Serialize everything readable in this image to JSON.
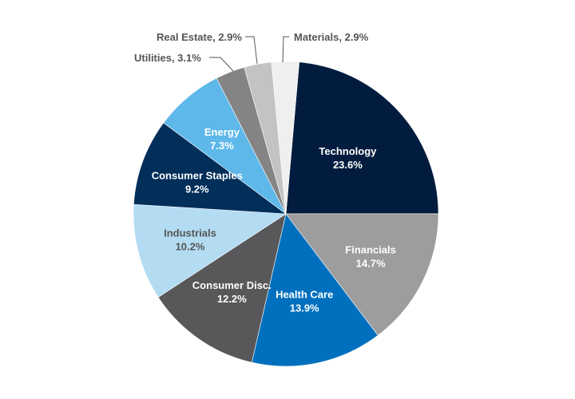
{
  "chart_data": {
    "type": "pie",
    "title": "",
    "start": "12 o'clock (slightly clockwise)",
    "direction": "clockwise",
    "legend": "none",
    "slices": [
      {
        "name": "Technology",
        "value": 23.6,
        "label": "Technology",
        "value_label": "23.6%",
        "color": "#011c3e",
        "text_color": "#ffffff",
        "label_style": "inside"
      },
      {
        "name": "Financials",
        "value": 14.7,
        "label": "Financials",
        "value_label": "14.7%",
        "color": "#9d9d9d",
        "text_color": "#ffffff",
        "label_style": "inside"
      },
      {
        "name": "Health Care",
        "value": 13.9,
        "label": "Health Care",
        "value_label": "13.9%",
        "color": "#0070be",
        "text_color": "#ffffff",
        "label_style": "inside"
      },
      {
        "name": "Consumer Disc.",
        "value": 12.2,
        "label": "Consumer Disc.",
        "value_label": "12.2%",
        "color": "#58585a",
        "text_color": "#ffffff",
        "label_style": "inside"
      },
      {
        "name": "Industrials",
        "value": 10.2,
        "label": "Industrials",
        "value_label": "10.2%",
        "color": "#b3dcf3",
        "text_color": "#555555",
        "label_style": "inside"
      },
      {
        "name": "Consumer Staples",
        "value": 9.2,
        "label": "Consumer Staples",
        "value_label": "9.2%",
        "color": "#022e5a",
        "text_color": "#ffffff",
        "label_style": "inside"
      },
      {
        "name": "Energy",
        "value": 7.3,
        "label": "Energy",
        "value_label": "7.3%",
        "color": "#5eb8ea",
        "text_color": "#ffffff",
        "label_style": "inside"
      },
      {
        "name": "Utilities",
        "value": 3.1,
        "label": "Utilities, 3.1%",
        "value_label": "3.1%",
        "color": "#848484",
        "text_color": "#555555",
        "label_style": "callout"
      },
      {
        "name": "Real Estate",
        "value": 2.9,
        "label": "Real Estate, 2.9%",
        "value_label": "2.9%",
        "color": "#c3c3c3",
        "text_color": "#555555",
        "label_style": "callout"
      },
      {
        "name": "Materials",
        "value": 2.9,
        "label": "Materials, 2.9%",
        "value_label": "2.9%",
        "color": "#efefef",
        "text_color": "#555555",
        "label_style": "callout"
      }
    ]
  }
}
